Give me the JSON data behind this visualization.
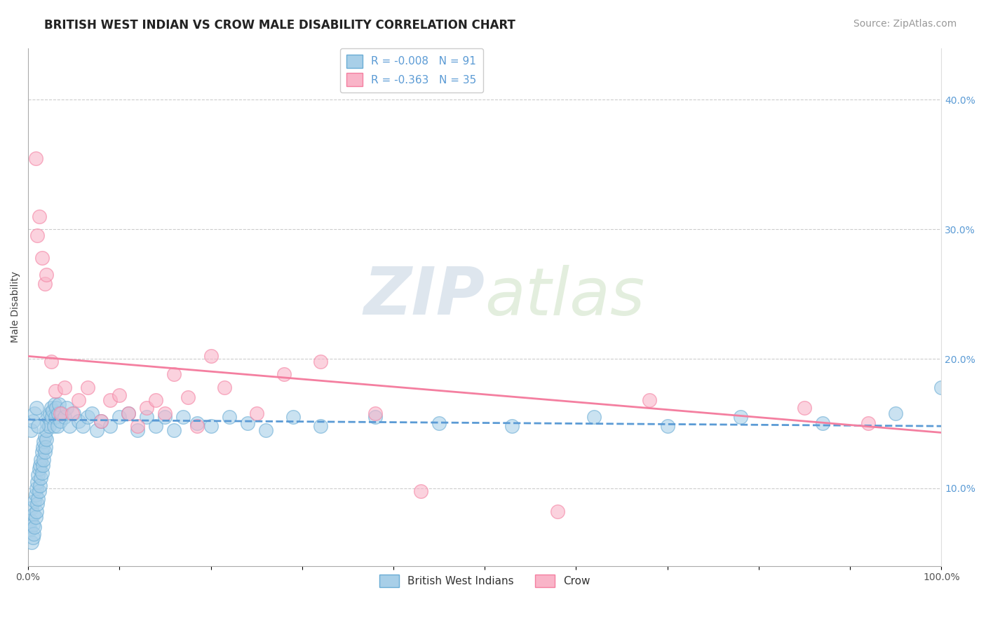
{
  "title": "BRITISH WEST INDIAN VS CROW MALE DISABILITY CORRELATION CHART",
  "source": "Source: ZipAtlas.com",
  "ylabel": "Male Disability",
  "xlim": [
    0.0,
    1.0
  ],
  "ylim": [
    0.04,
    0.44
  ],
  "x_ticks": [
    0.0,
    0.1,
    0.2,
    0.3,
    0.4,
    0.5,
    0.6,
    0.7,
    0.8,
    0.9,
    1.0
  ],
  "x_tick_labels_show": [
    "0.0%",
    "",
    "",
    "",
    "",
    "",
    "",
    "",
    "",
    "",
    "100.0%"
  ],
  "y_ticks": [
    0.1,
    0.2,
    0.3,
    0.4
  ],
  "y_tick_labels": [
    "10.0%",
    "20.0%",
    "30.0%",
    "40.0%"
  ],
  "legend_entry1": "R = -0.008   N = 91",
  "legend_entry2": "R = -0.363   N = 35",
  "legend_label1": "British West Indians",
  "legend_label2": "Crow",
  "blue_color": "#a8cfe8",
  "blue_edge_color": "#6aadd5",
  "pink_color": "#f9b4c8",
  "pink_edge_color": "#f47fa0",
  "blue_line_color": "#5b9bd5",
  "pink_line_color": "#f47fa0",
  "right_axis_color": "#5b9bd5",
  "watermark_text": "ZIPatlas",
  "blue_scatter_x": [
    0.002,
    0.003,
    0.004,
    0.004,
    0.005,
    0.005,
    0.006,
    0.006,
    0.007,
    0.007,
    0.008,
    0.008,
    0.009,
    0.009,
    0.01,
    0.01,
    0.011,
    0.011,
    0.012,
    0.012,
    0.013,
    0.013,
    0.014,
    0.014,
    0.015,
    0.015,
    0.016,
    0.016,
    0.017,
    0.017,
    0.018,
    0.018,
    0.019,
    0.02,
    0.02,
    0.021,
    0.022,
    0.023,
    0.024,
    0.025,
    0.026,
    0.027,
    0.028,
    0.029,
    0.03,
    0.031,
    0.032,
    0.033,
    0.034,
    0.035,
    0.037,
    0.04,
    0.042,
    0.045,
    0.05,
    0.055,
    0.06,
    0.065,
    0.07,
    0.075,
    0.08,
    0.09,
    0.1,
    0.11,
    0.12,
    0.13,
    0.14,
    0.15,
    0.16,
    0.17,
    0.185,
    0.2,
    0.22,
    0.24,
    0.26,
    0.29,
    0.32,
    0.38,
    0.45,
    0.53,
    0.62,
    0.7,
    0.78,
    0.87,
    0.95,
    1.0,
    0.003,
    0.005,
    0.007,
    0.009,
    0.011
  ],
  "blue_scatter_y": [
    0.068,
    0.075,
    0.058,
    0.085,
    0.062,
    0.072,
    0.065,
    0.08,
    0.07,
    0.09,
    0.078,
    0.095,
    0.082,
    0.1,
    0.088,
    0.105,
    0.092,
    0.11,
    0.098,
    0.115,
    0.102,
    0.118,
    0.108,
    0.122,
    0.112,
    0.128,
    0.118,
    0.132,
    0.122,
    0.136,
    0.128,
    0.14,
    0.132,
    0.138,
    0.145,
    0.15,
    0.155,
    0.148,
    0.158,
    0.162,
    0.155,
    0.16,
    0.148,
    0.165,
    0.155,
    0.162,
    0.148,
    0.158,
    0.165,
    0.152,
    0.158,
    0.155,
    0.162,
    0.148,
    0.158,
    0.152,
    0.148,
    0.155,
    0.158,
    0.145,
    0.152,
    0.148,
    0.155,
    0.158,
    0.145,
    0.155,
    0.148,
    0.155,
    0.145,
    0.155,
    0.15,
    0.148,
    0.155,
    0.15,
    0.145,
    0.155,
    0.148,
    0.155,
    0.15,
    0.148,
    0.155,
    0.148,
    0.155,
    0.15,
    0.158,
    0.178,
    0.145,
    0.152,
    0.158,
    0.162,
    0.148
  ],
  "pink_scatter_x": [
    0.008,
    0.01,
    0.012,
    0.015,
    0.018,
    0.02,
    0.025,
    0.03,
    0.035,
    0.04,
    0.048,
    0.055,
    0.065,
    0.08,
    0.09,
    0.1,
    0.11,
    0.12,
    0.13,
    0.14,
    0.15,
    0.16,
    0.175,
    0.185,
    0.2,
    0.215,
    0.25,
    0.28,
    0.32,
    0.38,
    0.43,
    0.58,
    0.68,
    0.85,
    0.92
  ],
  "pink_scatter_y": [
    0.355,
    0.295,
    0.31,
    0.278,
    0.258,
    0.265,
    0.198,
    0.175,
    0.158,
    0.178,
    0.158,
    0.168,
    0.178,
    0.152,
    0.168,
    0.172,
    0.158,
    0.148,
    0.162,
    0.168,
    0.158,
    0.188,
    0.17,
    0.148,
    0.202,
    0.178,
    0.158,
    0.188,
    0.198,
    0.158,
    0.098,
    0.082,
    0.168,
    0.162,
    0.15
  ],
  "blue_trendline_x": [
    0.0,
    1.0
  ],
  "blue_trendline_y": [
    0.153,
    0.148
  ],
  "pink_trendline_x": [
    0.0,
    1.0
  ],
  "pink_trendline_y": [
    0.202,
    0.143
  ],
  "background_color": "#ffffff",
  "grid_color": "#cccccc",
  "title_fontsize": 12,
  "axis_label_fontsize": 10,
  "tick_fontsize": 10,
  "source_fontsize": 10
}
